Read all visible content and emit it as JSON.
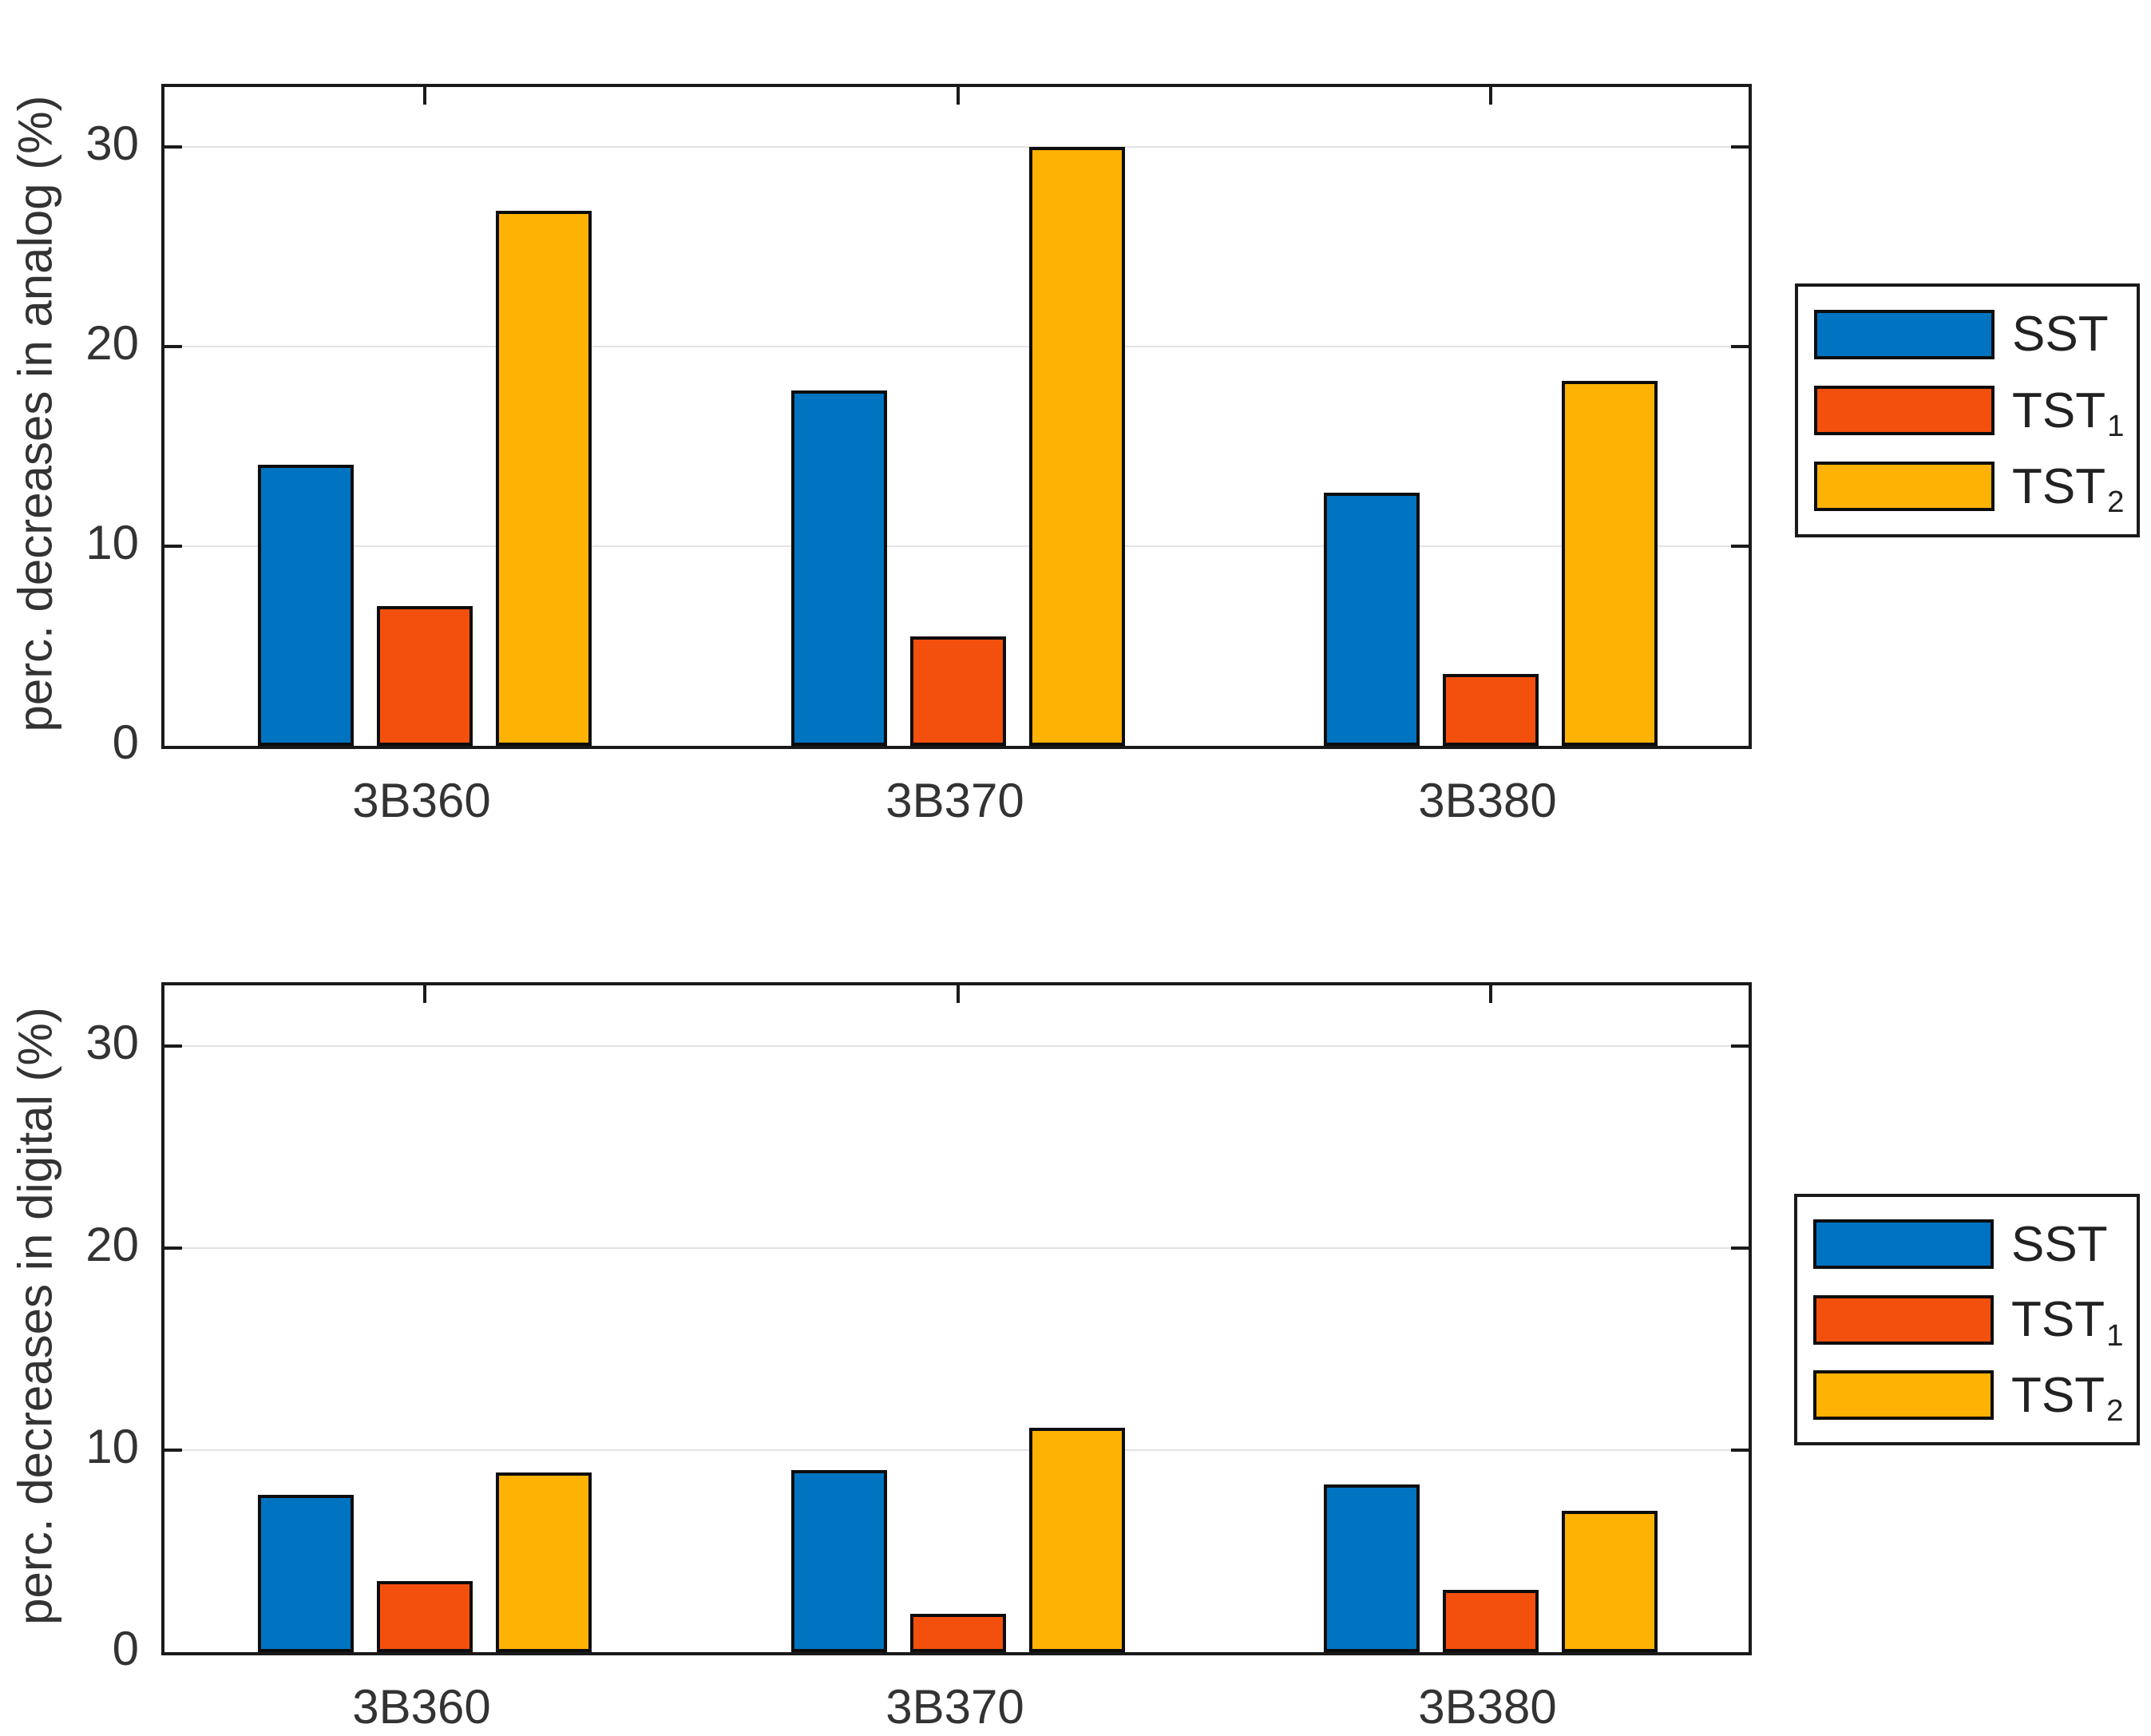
{
  "figure_background": "#ffffff",
  "colors": {
    "axis": "#1a1a1a",
    "grid": "#e3e3e3",
    "text": "#333333",
    "bar_edge": "#0d0d0d",
    "series": {
      "SST": "#0074c1",
      "TST1": "#f4500d",
      "TST2": "#feb204"
    }
  },
  "legend": {
    "entries": [
      {
        "label": "SST",
        "sub": "",
        "color_key": "SST"
      },
      {
        "label": "TST",
        "sub": "1",
        "color_key": "TST1"
      },
      {
        "label": "TST",
        "sub": "2",
        "color_key": "TST2"
      }
    ]
  },
  "chart_data": [
    {
      "type": "bar",
      "title": "",
      "xlabel": "",
      "ylabel": "perc. decreases in analog (%)",
      "categories": [
        "3B360",
        "3B370",
        "3B380"
      ],
      "yticks": [
        0,
        10,
        20,
        30
      ],
      "ylim": [
        0,
        33
      ],
      "grid": true,
      "legend_position": "right-outside",
      "series": [
        {
          "name": "SST",
          "values": [
            14.1,
            17.8,
            12.7
          ]
        },
        {
          "name": "TST1",
          "values": [
            7.0,
            5.5,
            3.6
          ]
        },
        {
          "name": "TST2",
          "values": [
            26.8,
            30.0,
            18.3
          ]
        }
      ]
    },
    {
      "type": "bar",
      "title": "",
      "xlabel": "",
      "ylabel": "perc. decreases in digital (%)",
      "categories": [
        "3B360",
        "3B370",
        "3B380"
      ],
      "yticks": [
        0,
        10,
        20,
        30
      ],
      "ylim": [
        0,
        33
      ],
      "grid": true,
      "legend_position": "right-outside",
      "series": [
        {
          "name": "SST",
          "values": [
            7.8,
            9.0,
            8.3
          ]
        },
        {
          "name": "TST1",
          "values": [
            3.5,
            1.9,
            3.1
          ]
        },
        {
          "name": "TST2",
          "values": [
            8.9,
            11.1,
            7.0
          ]
        }
      ]
    }
  ]
}
